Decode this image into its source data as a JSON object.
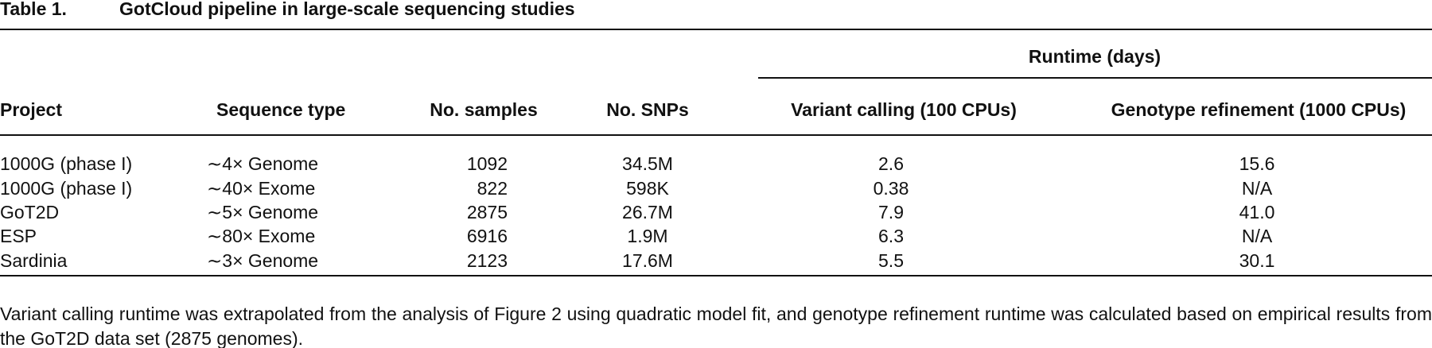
{
  "title": {
    "label": "Table 1.",
    "text": "GotCloud pipeline in large-scale sequencing studies"
  },
  "table": {
    "group_header": "Runtime (days)",
    "columns": [
      "Project",
      "Sequence type",
      "No. samples",
      "No. SNPs",
      "Variant calling (100 CPUs)",
      "Genotype refinement (1000 CPUs)"
    ],
    "rows": [
      [
        "1000G (phase I)",
        "∼4× Genome",
        "1092",
        "34.5M",
        "2.6",
        "15.6"
      ],
      [
        "1000G (phase I)",
        "∼40× Exome",
        "822",
        "598K",
        "0.38",
        "N/A"
      ],
      [
        "GoT2D",
        "∼5× Genome",
        "2875",
        "26.7M",
        "7.9",
        "41.0"
      ],
      [
        "ESP",
        "∼80× Exome",
        "6916",
        "1.9M",
        "6.3",
        "N/A"
      ],
      [
        "Sardinia",
        "∼3× Genome",
        "2123",
        "17.6M",
        "5.5",
        "30.1"
      ]
    ]
  },
  "footnote": "Variant calling runtime was extrapolated from the analysis of Figure 2 using quadratic model fit, and genotype refinement runtime was calculated based on empirical results from the GoT2D data set (2875 genomes)."
}
